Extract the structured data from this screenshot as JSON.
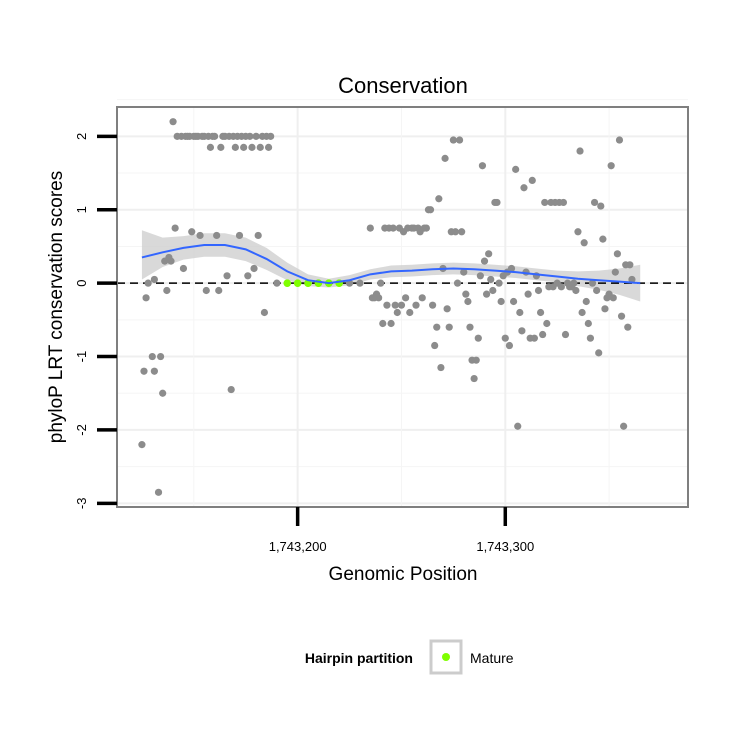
{
  "chart_data": {
    "type": "scatter",
    "title": "Conservation",
    "xlabel": "Genomic Position",
    "ylabel": "phyloP LRT conservation scores",
    "xlim": [
      1743113,
      1743388
    ],
    "ylim": [
      -3.05,
      2.4
    ],
    "x_ticks": [
      1743200,
      1743300
    ],
    "x_tick_labels": [
      "1,743,200",
      "1,743,300"
    ],
    "y_ticks": [
      -3,
      -2,
      -1,
      0,
      1,
      2
    ],
    "y_tick_labels": [
      "-3",
      "-2",
      "-1",
      "0",
      "1",
      "2"
    ],
    "grid": true,
    "reference_line_y": 0,
    "legend": {
      "title": "Hairpin partition",
      "placement": "bottom",
      "entries": [
        {
          "label": "Mature",
          "color": "#7fff00"
        }
      ]
    },
    "colors": {
      "points": "#8c8c8c",
      "mature": "#7fff00",
      "smooth_line": "#3366ff",
      "ribbon": "#cccccc",
      "panel_border": "#7f7f7f"
    },
    "series": [
      {
        "points": [
          [
            1743125,
            -2.2
          ],
          [
            1743126,
            -1.2
          ],
          [
            1743127,
            -0.2
          ],
          [
            1743128,
            0.0
          ],
          [
            1743130,
            -1.0
          ],
          [
            1743131,
            -1.2
          ],
          [
            1743131,
            0.05
          ],
          [
            1743133,
            -2.85
          ],
          [
            1743134,
            -1.0
          ],
          [
            1743135,
            -1.5
          ],
          [
            1743136,
            0.3
          ],
          [
            1743137,
            -0.1
          ],
          [
            1743138,
            0.35
          ],
          [
            1743139,
            0.3
          ],
          [
            1743140,
            2.2
          ],
          [
            1743141,
            0.75
          ],
          [
            1743142,
            2.0
          ],
          [
            1743144,
            2.0
          ],
          [
            1743145,
            0.2
          ],
          [
            1743146,
            2.0
          ],
          [
            1743147,
            2.0
          ],
          [
            1743148,
            2.0
          ],
          [
            1743149,
            0.7
          ],
          [
            1743150,
            2.0
          ],
          [
            1743151,
            2.0
          ],
          [
            1743152,
            2.0
          ],
          [
            1743153,
            0.65
          ],
          [
            1743154,
            2.0
          ],
          [
            1743155,
            2.0
          ],
          [
            1743156,
            -0.1
          ],
          [
            1743157,
            2.0
          ],
          [
            1743158,
            1.85
          ],
          [
            1743159,
            2.0
          ],
          [
            1743160,
            2.0
          ],
          [
            1743161,
            0.65
          ],
          [
            1743162,
            -0.1
          ],
          [
            1743163,
            1.85
          ],
          [
            1743164,
            2.0
          ],
          [
            1743165,
            2.0
          ],
          [
            1743166,
            0.1
          ],
          [
            1743167,
            2.0
          ],
          [
            1743168,
            -1.45
          ],
          [
            1743169,
            2.0
          ],
          [
            1743170,
            1.85
          ],
          [
            1743171,
            2.0
          ],
          [
            1743172,
            0.65
          ],
          [
            1743173,
            2.0
          ],
          [
            1743174,
            1.85
          ],
          [
            1743175,
            2.0
          ],
          [
            1743176,
            0.1
          ],
          [
            1743177,
            2.0
          ],
          [
            1743178,
            1.85
          ],
          [
            1743179,
            0.2
          ],
          [
            1743180,
            2.0
          ],
          [
            1743181,
            0.65
          ],
          [
            1743182,
            1.85
          ],
          [
            1743183,
            2.0
          ],
          [
            1743184,
            -0.4
          ],
          [
            1743185,
            2.0
          ],
          [
            1743186,
            1.85
          ],
          [
            1743187,
            2.0
          ],
          [
            1743190,
            0
          ],
          [
            1743195,
            0
          ],
          [
            1743200,
            0
          ],
          [
            1743205,
            0
          ],
          [
            1743210,
            0
          ],
          [
            1743215,
            0
          ],
          [
            1743220,
            0
          ],
          [
            1743225,
            0
          ],
          [
            1743230,
            0
          ],
          [
            1743235,
            0.75
          ],
          [
            1743236,
            -0.2
          ],
          [
            1743237,
            -0.2
          ],
          [
            1743238,
            -0.15
          ],
          [
            1743239,
            -0.2
          ],
          [
            1743240,
            0.0
          ],
          [
            1743241,
            -0.55
          ],
          [
            1743242,
            0.75
          ],
          [
            1743243,
            -0.3
          ],
          [
            1743244,
            0.75
          ],
          [
            1743245,
            -0.55
          ],
          [
            1743246,
            0.75
          ],
          [
            1743247,
            -0.3
          ],
          [
            1743248,
            -0.4
          ],
          [
            1743249,
            0.75
          ],
          [
            1743250,
            -0.3
          ],
          [
            1743251,
            0.7
          ],
          [
            1743252,
            -0.2
          ],
          [
            1743253,
            0.75
          ],
          [
            1743254,
            -0.4
          ],
          [
            1743255,
            0.75
          ],
          [
            1743256,
            0.75
          ],
          [
            1743257,
            -0.3
          ],
          [
            1743258,
            0.75
          ],
          [
            1743259,
            0.7
          ],
          [
            1743260,
            -0.2
          ],
          [
            1743261,
            0.75
          ],
          [
            1743262,
            0.75
          ],
          [
            1743263,
            1.0
          ],
          [
            1743264,
            1.0
          ],
          [
            1743265,
            -0.3
          ],
          [
            1743266,
            -0.85
          ],
          [
            1743267,
            -0.6
          ],
          [
            1743268,
            1.15
          ],
          [
            1743269,
            -1.15
          ],
          [
            1743270,
            0.2
          ],
          [
            1743271,
            1.7
          ],
          [
            1743272,
            -0.35
          ],
          [
            1743273,
            -0.6
          ],
          [
            1743274,
            0.7
          ],
          [
            1743275,
            1.95
          ],
          [
            1743276,
            0.7
          ],
          [
            1743277,
            0.0
          ],
          [
            1743278,
            1.95
          ],
          [
            1743279,
            0.7
          ],
          [
            1743280,
            0.15
          ],
          [
            1743281,
            -0.15
          ],
          [
            1743282,
            -0.25
          ],
          [
            1743283,
            -0.6
          ],
          [
            1743284,
            -1.05
          ],
          [
            1743285,
            -1.3
          ],
          [
            1743286,
            -1.05
          ],
          [
            1743287,
            -0.75
          ],
          [
            1743288,
            0.1
          ],
          [
            1743289,
            1.6
          ],
          [
            1743290,
            0.3
          ],
          [
            1743291,
            -0.15
          ],
          [
            1743292,
            0.4
          ],
          [
            1743293,
            0.05
          ],
          [
            1743294,
            -0.1
          ],
          [
            1743295,
            1.1
          ],
          [
            1743296,
            1.1
          ],
          [
            1743297,
            0.0
          ],
          [
            1743298,
            -0.25
          ],
          [
            1743299,
            0.1
          ],
          [
            1743300,
            -0.75
          ],
          [
            1743301,
            0.15
          ],
          [
            1743302,
            -0.85
          ],
          [
            1743303,
            0.2
          ],
          [
            1743304,
            -0.25
          ],
          [
            1743305,
            1.55
          ],
          [
            1743306,
            -1.95
          ],
          [
            1743307,
            -0.4
          ],
          [
            1743308,
            -0.65
          ],
          [
            1743309,
            1.3
          ],
          [
            1743310,
            0.15
          ],
          [
            1743311,
            -0.15
          ],
          [
            1743312,
            -0.75
          ],
          [
            1743313,
            1.4
          ],
          [
            1743314,
            -0.75
          ],
          [
            1743315,
            0.1
          ],
          [
            1743316,
            -0.1
          ],
          [
            1743317,
            -0.4
          ],
          [
            1743318,
            -0.7
          ],
          [
            1743319,
            1.1
          ],
          [
            1743320,
            -0.55
          ],
          [
            1743321,
            -0.05
          ],
          [
            1743322,
            1.1
          ],
          [
            1743323,
            -0.05
          ],
          [
            1743324,
            1.1
          ],
          [
            1743325,
            0.0
          ],
          [
            1743326,
            1.1
          ],
          [
            1743327,
            -0.05
          ],
          [
            1743328,
            1.1
          ],
          [
            1743329,
            -0.7
          ],
          [
            1743330,
            0.0
          ],
          [
            1743331,
            -0.05
          ],
          [
            1743332,
            -0.05
          ],
          [
            1743333,
            0.0
          ],
          [
            1743334,
            -0.1
          ],
          [
            1743335,
            0.7
          ],
          [
            1743336,
            1.8
          ],
          [
            1743337,
            -0.4
          ],
          [
            1743338,
            0.55
          ],
          [
            1743339,
            -0.25
          ],
          [
            1743340,
            -0.55
          ],
          [
            1743341,
            -0.75
          ],
          [
            1743342,
            0.0
          ],
          [
            1743343,
            1.1
          ],
          [
            1743344,
            -0.1
          ],
          [
            1743345,
            -0.95
          ],
          [
            1743346,
            1.05
          ],
          [
            1743347,
            0.6
          ],
          [
            1743348,
            -0.35
          ],
          [
            1743349,
            -0.2
          ],
          [
            1743350,
            -0.15
          ],
          [
            1743351,
            1.6
          ],
          [
            1743352,
            -0.2
          ],
          [
            1743353,
            0.15
          ],
          [
            1743354,
            0.4
          ],
          [
            1743355,
            1.95
          ],
          [
            1743356,
            -0.45
          ],
          [
            1743357,
            -1.95
          ],
          [
            1743358,
            0.25
          ],
          [
            1743359,
            -0.6
          ],
          [
            1743360,
            0.25
          ],
          [
            1743361,
            0.05
          ]
        ]
      },
      {
        "name": "Mature",
        "points": [
          [
            1743195,
            0
          ],
          [
            1743200,
            0
          ],
          [
            1743205,
            0
          ],
          [
            1743210,
            0
          ],
          [
            1743215,
            0
          ],
          [
            1743220,
            0
          ]
        ]
      }
    ],
    "smooth_curve": {
      "x": [
        1743125,
        1743135,
        1743145,
        1743155,
        1743165,
        1743175,
        1743185,
        1743195,
        1743205,
        1743215,
        1743225,
        1743235,
        1743245,
        1743255,
        1743265,
        1743275,
        1743285,
        1743295,
        1743305,
        1743315,
        1743325,
        1743335,
        1743345,
        1743355,
        1743365
      ],
      "y": [
        0.35,
        0.42,
        0.48,
        0.52,
        0.52,
        0.46,
        0.33,
        0.16,
        0.04,
        0.0,
        0.04,
        0.12,
        0.16,
        0.17,
        0.19,
        0.2,
        0.19,
        0.17,
        0.15,
        0.12,
        0.09,
        0.06,
        0.04,
        0.02,
        0.0
      ],
      "ci_lower": [
        0.05,
        0.22,
        0.32,
        0.36,
        0.36,
        0.3,
        0.18,
        0.04,
        -0.04,
        -0.06,
        -0.03,
        0.05,
        0.08,
        0.09,
        0.11,
        0.12,
        0.11,
        0.09,
        0.07,
        0.04,
        0.01,
        -0.04,
        -0.09,
        -0.16,
        -0.25
      ],
      "ci_upper": [
        0.72,
        0.62,
        0.64,
        0.68,
        0.68,
        0.62,
        0.48,
        0.28,
        0.12,
        0.06,
        0.11,
        0.19,
        0.24,
        0.25,
        0.27,
        0.28,
        0.27,
        0.25,
        0.23,
        0.2,
        0.17,
        0.16,
        0.17,
        0.2,
        0.25
      ]
    }
  }
}
